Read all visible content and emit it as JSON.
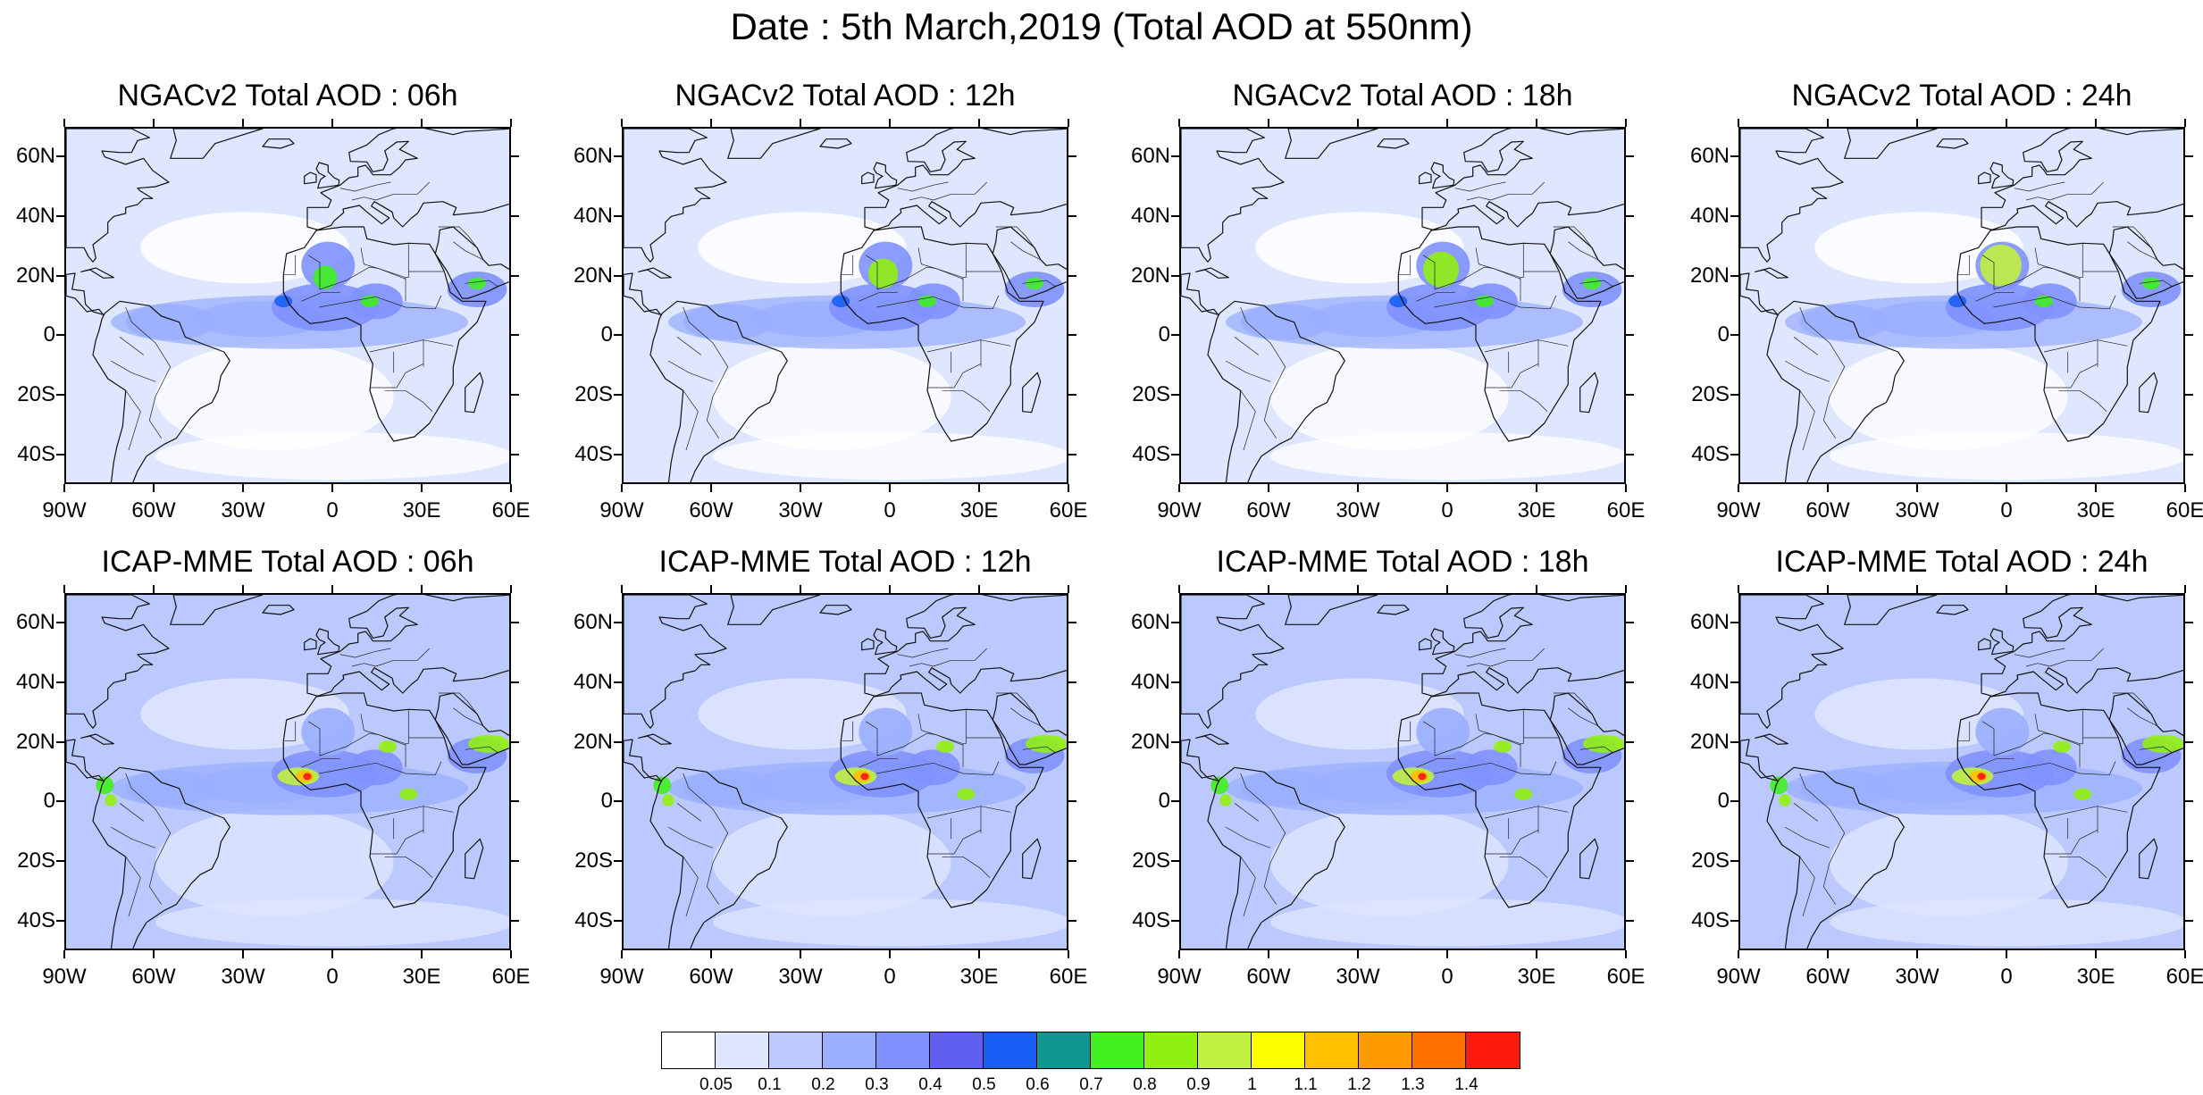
{
  "figure": {
    "title": "Date : 5th March,2019 (Total AOD at 550nm)"
  },
  "axes": {
    "lat_ticks": [
      "60N",
      "40N",
      "20N",
      "0",
      "20S",
      "40S"
    ],
    "lat_values": [
      60,
      40,
      20,
      0,
      -20,
      -40
    ],
    "lon_ticks": [
      "90W",
      "60W",
      "30W",
      "0",
      "30E",
      "60E"
    ],
    "lon_values": [
      -90,
      -60,
      -30,
      0,
      30,
      60
    ],
    "lat_range": [
      -50,
      70
    ],
    "lon_range": [
      -90,
      60
    ]
  },
  "panels": [
    {
      "title": "NGACv2 Total AOD : 06h",
      "model": "NGACv2",
      "hour": 6
    },
    {
      "title": "NGACv2 Total AOD : 12h",
      "model": "NGACv2",
      "hour": 12
    },
    {
      "title": "NGACv2 Total AOD : 18h",
      "model": "NGACv2",
      "hour": 18
    },
    {
      "title": "NGACv2 Total AOD : 24h",
      "model": "NGACv2",
      "hour": 24
    },
    {
      "title": "ICAP-MME Total AOD : 06h",
      "model": "ICAP-MME",
      "hour": 6
    },
    {
      "title": "ICAP-MME Total AOD : 12h",
      "model": "ICAP-MME",
      "hour": 12
    },
    {
      "title": "ICAP-MME Total AOD : 18h",
      "model": "ICAP-MME",
      "hour": 18
    },
    {
      "title": "ICAP-MME Total AOD : 24h",
      "model": "ICAP-MME",
      "hour": 24
    }
  ],
  "colorbar": {
    "labels": [
      "0.05",
      "0.1",
      "0.2",
      "0.3",
      "0.4",
      "0.5",
      "0.6",
      "0.7",
      "0.8",
      "0.9",
      "1",
      "1.1",
      "1.2",
      "1.3",
      "1.4"
    ],
    "colors": [
      "#ffffff",
      "#dfe6ff",
      "#bcc9ff",
      "#9aafff",
      "#7f91ff",
      "#6060f0",
      "#1a5ff5",
      "#109890",
      "#40f020",
      "#90f010",
      "#c0f040",
      "#ffff00",
      "#ffc000",
      "#ff9a00",
      "#ff7000",
      "#ff1a10"
    ]
  }
}
